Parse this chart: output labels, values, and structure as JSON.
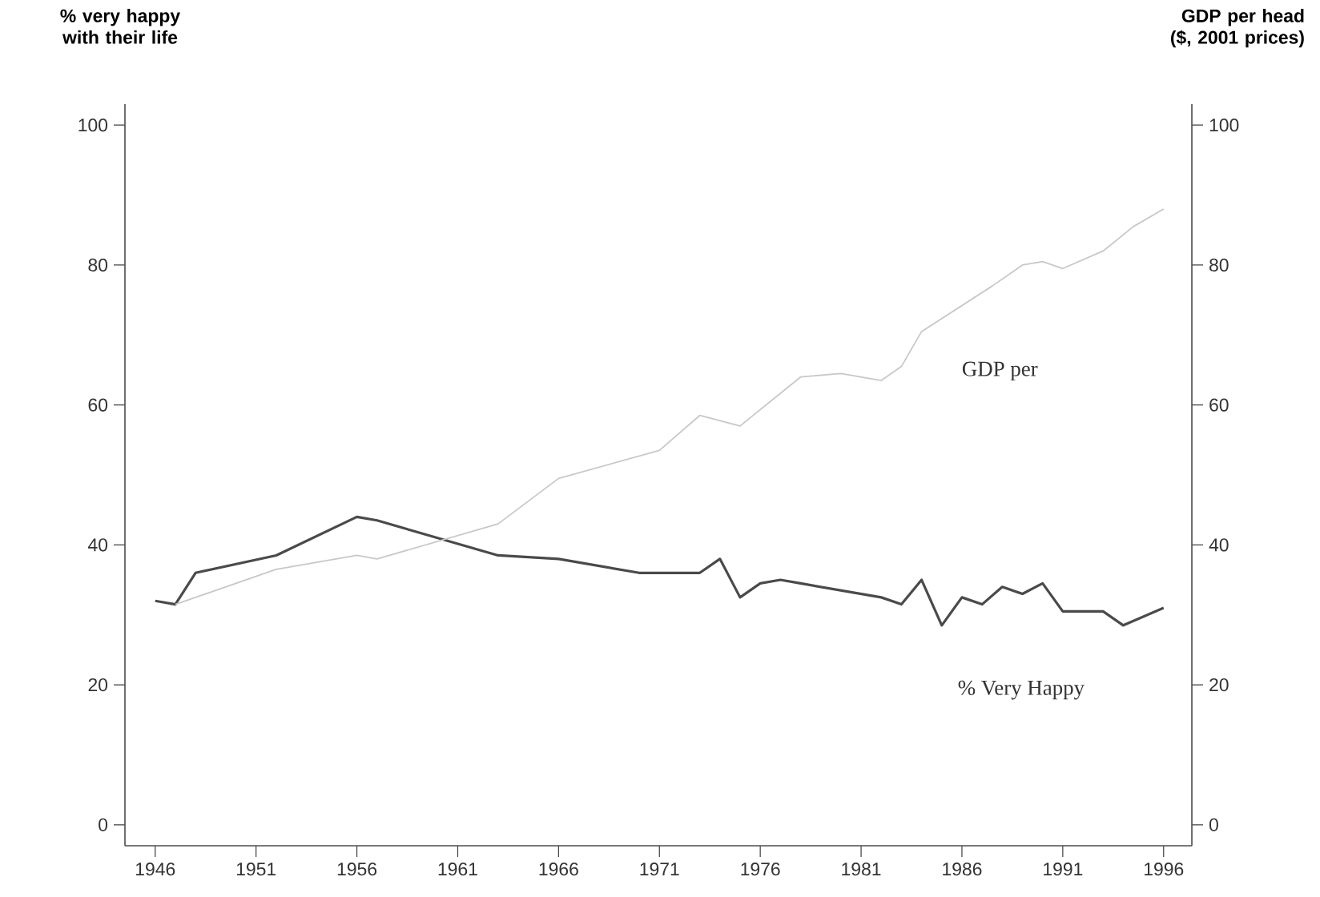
{
  "chart_data": {
    "type": "line",
    "ylabel": "% very happy with their life",
    "y2label": "GDP per head ($, 2001 prices)",
    "xlim": [
      1944.5,
      1997.4
    ],
    "xticks": [
      1946,
      1951,
      1956,
      1961,
      1966,
      1971,
      1976,
      1981,
      1986,
      1991,
      1996
    ],
    "ylim": [
      -3,
      103
    ],
    "yticks": [
      0,
      20,
      40,
      60,
      80,
      100
    ],
    "y2lim": [
      -3,
      103
    ],
    "y2ticks": [
      0,
      20,
      40,
      60,
      80,
      100
    ],
    "grid": false,
    "series": [
      {
        "color": "#4a4a4a",
        "x": [
          1946,
          1947,
          1948,
          1952,
          1956,
          1957,
          1963,
          1966,
          1970,
          1973,
          1974,
          1975,
          1976,
          1977,
          1978,
          1982,
          1983,
          1984,
          1985,
          1986,
          1987,
          1988,
          1989,
          1990,
          1991,
          1993,
          1994,
          1996
        ],
        "values": [
          32,
          31.5,
          36,
          38.5,
          44,
          43.5,
          38.5,
          38,
          36,
          36,
          38,
          32.5,
          34.5,
          35,
          34.5,
          32.5,
          31.5,
          35,
          28.5,
          32.5,
          31.5,
          34,
          33,
          34.5,
          30.5,
          30.5,
          28.5,
          31
        ]
      },
      {
        "color": "#c8c8c8",
        "axis": "y2",
        "x": [
          1947,
          1952,
          1956,
          1957,
          1963,
          1966,
          1971,
          1973,
          1975,
          1978,
          1980,
          1982,
          1983,
          1984,
          1987.5,
          1989,
          1990,
          1991,
          1993,
          1994.5,
          1996
        ],
        "values": [
          31.5,
          36.5,
          38.5,
          38,
          43,
          49.5,
          53.5,
          58.5,
          57,
          64,
          64.5,
          63.5,
          65.5,
          70.5,
          77,
          80,
          80.5,
          79.5,
          82,
          85.5,
          88
        ]
      }
    ],
    "annotations": [
      "GDP per",
      "% Very Happy"
    ]
  }
}
